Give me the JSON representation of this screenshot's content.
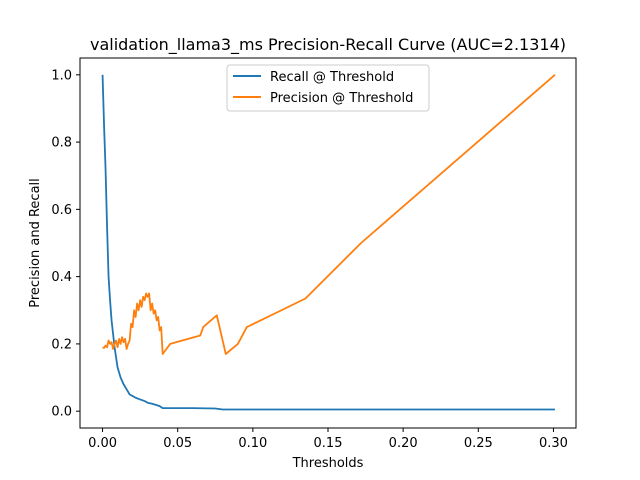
{
  "chart_data": {
    "type": "line",
    "title": "validation_llama3_ms Precision-Recall Curve (AUC=2.1314)",
    "xlabel": "Thresholds",
    "ylabel": "Precision and Recall",
    "xlim": [
      -0.015,
      0.315
    ],
    "ylim": [
      -0.05,
      1.05
    ],
    "xticks": [
      0.0,
      0.05,
      0.1,
      0.15,
      0.2,
      0.25,
      0.3
    ],
    "xtick_labels": [
      "0.00",
      "0.05",
      "0.10",
      "0.15",
      "0.20",
      "0.25",
      "0.30"
    ],
    "yticks": [
      0.0,
      0.2,
      0.4,
      0.6,
      0.8,
      1.0
    ],
    "ytick_labels": [
      "0.0",
      "0.2",
      "0.4",
      "0.6",
      "0.8",
      "1.0"
    ],
    "grid": false,
    "legend_position": "top-center",
    "series": [
      {
        "name": "Recall @ Threshold",
        "color": "#1f77b4",
        "x": [
          0.0,
          0.001,
          0.002,
          0.003,
          0.004,
          0.005,
          0.006,
          0.007,
          0.008,
          0.009,
          0.01,
          0.012,
          0.014,
          0.016,
          0.018,
          0.02,
          0.022,
          0.025,
          0.028,
          0.03,
          0.033,
          0.036,
          0.038,
          0.04,
          0.06,
          0.075,
          0.08,
          0.1,
          0.15,
          0.2,
          0.25,
          0.301
        ],
        "y": [
          1.0,
          0.85,
          0.72,
          0.55,
          0.4,
          0.33,
          0.27,
          0.23,
          0.19,
          0.16,
          0.13,
          0.1,
          0.08,
          0.065,
          0.05,
          0.045,
          0.04,
          0.035,
          0.03,
          0.025,
          0.022,
          0.018,
          0.015,
          0.009,
          0.009,
          0.008,
          0.005,
          0.005,
          0.005,
          0.005,
          0.005,
          0.005
        ]
      },
      {
        "name": "Precision @ Threshold",
        "color": "#ff7f0e",
        "x": [
          0.0,
          0.001,
          0.002,
          0.003,
          0.004,
          0.005,
          0.006,
          0.007,
          0.008,
          0.009,
          0.01,
          0.011,
          0.012,
          0.013,
          0.014,
          0.015,
          0.016,
          0.017,
          0.018,
          0.019,
          0.02,
          0.021,
          0.022,
          0.023,
          0.024,
          0.025,
          0.026,
          0.027,
          0.028,
          0.029,
          0.03,
          0.031,
          0.032,
          0.033,
          0.034,
          0.035,
          0.036,
          0.037,
          0.038,
          0.039,
          0.04,
          0.045,
          0.065,
          0.067,
          0.076,
          0.082,
          0.09,
          0.096,
          0.135,
          0.172,
          0.301
        ],
        "y": [
          0.19,
          0.188,
          0.195,
          0.19,
          0.21,
          0.2,
          0.205,
          0.185,
          0.2,
          0.21,
          0.19,
          0.215,
          0.2,
          0.22,
          0.205,
          0.215,
          0.185,
          0.2,
          0.21,
          0.26,
          0.25,
          0.3,
          0.28,
          0.32,
          0.3,
          0.33,
          0.31,
          0.34,
          0.33,
          0.35,
          0.34,
          0.35,
          0.3,
          0.32,
          0.29,
          0.3,
          0.27,
          0.28,
          0.24,
          0.25,
          0.17,
          0.2,
          0.225,
          0.25,
          0.285,
          0.17,
          0.2,
          0.25,
          0.335,
          0.5,
          1.0
        ]
      }
    ]
  }
}
